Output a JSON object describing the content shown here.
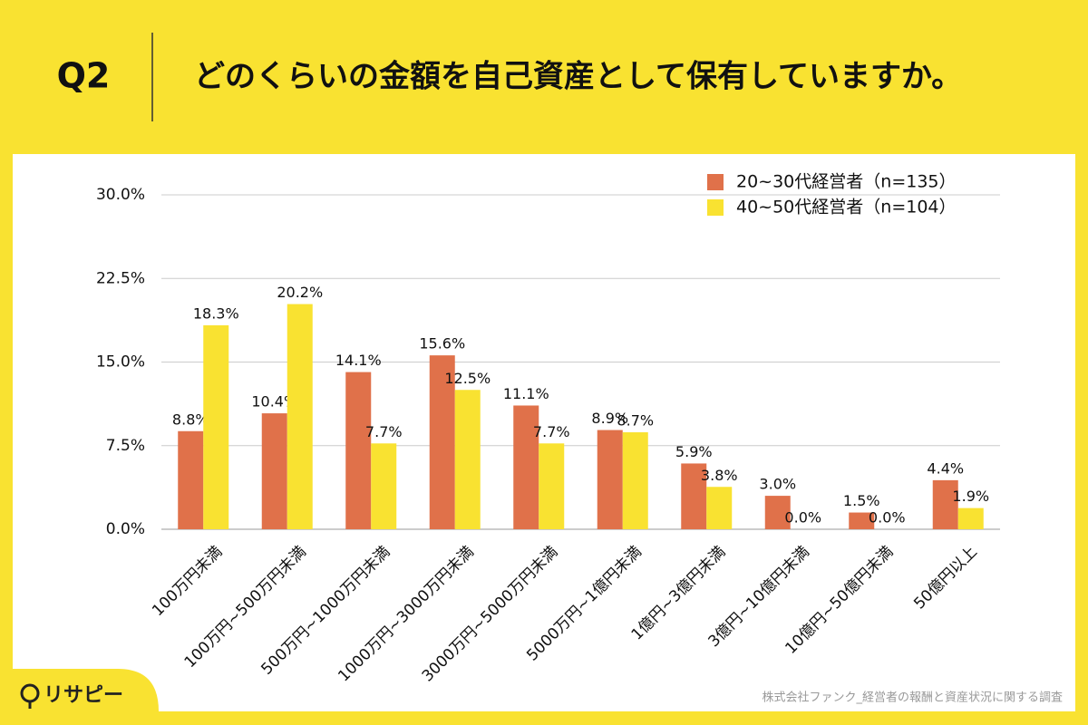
{
  "header": {
    "question": "Q2",
    "title": "どのくらいの金額を自己資産として保有していますか。"
  },
  "chart_data": {
    "type": "bar",
    "categories": [
      "100万円未満",
      "100万円~500万円未満",
      "500万円~1000万円未満",
      "1000万円~3000万円未満",
      "3000万円~5000万円未満",
      "5000万円~1億円未満",
      "1億円~3億円未満",
      "3億円~10億円未満",
      "10億円~50億円未満",
      "50億円以上"
    ],
    "series": [
      {
        "name": "20~30代経営者（n=135）",
        "color": "#e0714a",
        "values": [
          8.8,
          10.4,
          14.1,
          15.6,
          11.1,
          8.9,
          5.9,
          3.0,
          1.5,
          4.4
        ],
        "value_labels": [
          "8.8%",
          "10.4%",
          "14.1%",
          "15.6%",
          "11.1%",
          "8.9%",
          "5.9%",
          "3.0%",
          "1.5%",
          "4.4%"
        ]
      },
      {
        "name": "40~50代経営者（n=104）",
        "color": "#f9e231",
        "values": [
          18.3,
          20.2,
          7.7,
          12.5,
          7.7,
          8.7,
          3.8,
          0.0,
          0.0,
          1.9
        ],
        "value_labels": [
          "18.3%",
          "20.2%",
          "7.7%",
          "12.5%",
          "7.7%",
          "8.7%",
          "3.8%",
          "0.0%",
          "0.0%",
          "1.9%"
        ]
      }
    ],
    "ylim": [
      0,
      30
    ],
    "yticks": [
      {
        "value": 0,
        "label": "0.0%"
      },
      {
        "value": 7.5,
        "label": "7.5%"
      },
      {
        "value": 15,
        "label": "15.0%"
      },
      {
        "value": 22.5,
        "label": "22.5%"
      },
      {
        "value": 30,
        "label": "30.0%"
      }
    ],
    "grid": true,
    "legend": "top-right"
  },
  "footer": {
    "logo": "リサピー",
    "source": "株式会社ファンク_経営者の報酬と資産状況に関する調査"
  }
}
